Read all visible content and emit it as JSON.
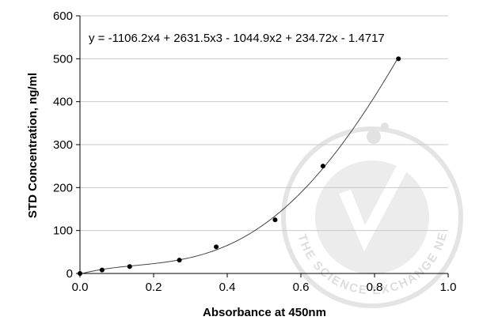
{
  "chart_data": {
    "type": "scatter",
    "title": "",
    "xlabel": "Absorbance at 450nm",
    "ylabel": "STD Concentration, ng/ml",
    "xlim": [
      0.0,
      1.0
    ],
    "ylim": [
      0,
      600
    ],
    "x_ticks": [
      0.0,
      0.2,
      0.4,
      0.6,
      0.8,
      1.0
    ],
    "x_tick_labels": [
      "0.0",
      "0.2",
      "0.4",
      "0.6",
      "0.8",
      "1.0"
    ],
    "y_ticks": [
      0,
      100,
      200,
      300,
      400,
      500,
      600
    ],
    "y_tick_labels": [
      "0",
      "100",
      "200",
      "300",
      "400",
      "500",
      "600"
    ],
    "grid": "horizontal",
    "legend": "none",
    "equation": "y = -1106.2x4 + 2631.5x3 - 1044.9x2 + 234.72x - 1.4717",
    "fit_coefficients": [
      -1106.2,
      2631.5,
      -1044.9,
      234.72,
      -1.4717
    ],
    "points": [
      {
        "x": 0.0,
        "y": 0
      },
      {
        "x": 0.06,
        "y": 8
      },
      {
        "x": 0.135,
        "y": 16
      },
      {
        "x": 0.27,
        "y": 31
      },
      {
        "x": 0.37,
        "y": 62
      },
      {
        "x": 0.53,
        "y": 125
      },
      {
        "x": 0.66,
        "y": 250
      },
      {
        "x": 0.865,
        "y": 500
      }
    ],
    "marker_color": "#000000",
    "fit_line_color": "#444444",
    "grid_color": "#c8c8c8"
  },
  "watermark": {
    "text": "THE SCIENCE EXCHANGE NETWORK",
    "color": "#dddddd",
    "icon": "checkmark-badge-icon"
  }
}
